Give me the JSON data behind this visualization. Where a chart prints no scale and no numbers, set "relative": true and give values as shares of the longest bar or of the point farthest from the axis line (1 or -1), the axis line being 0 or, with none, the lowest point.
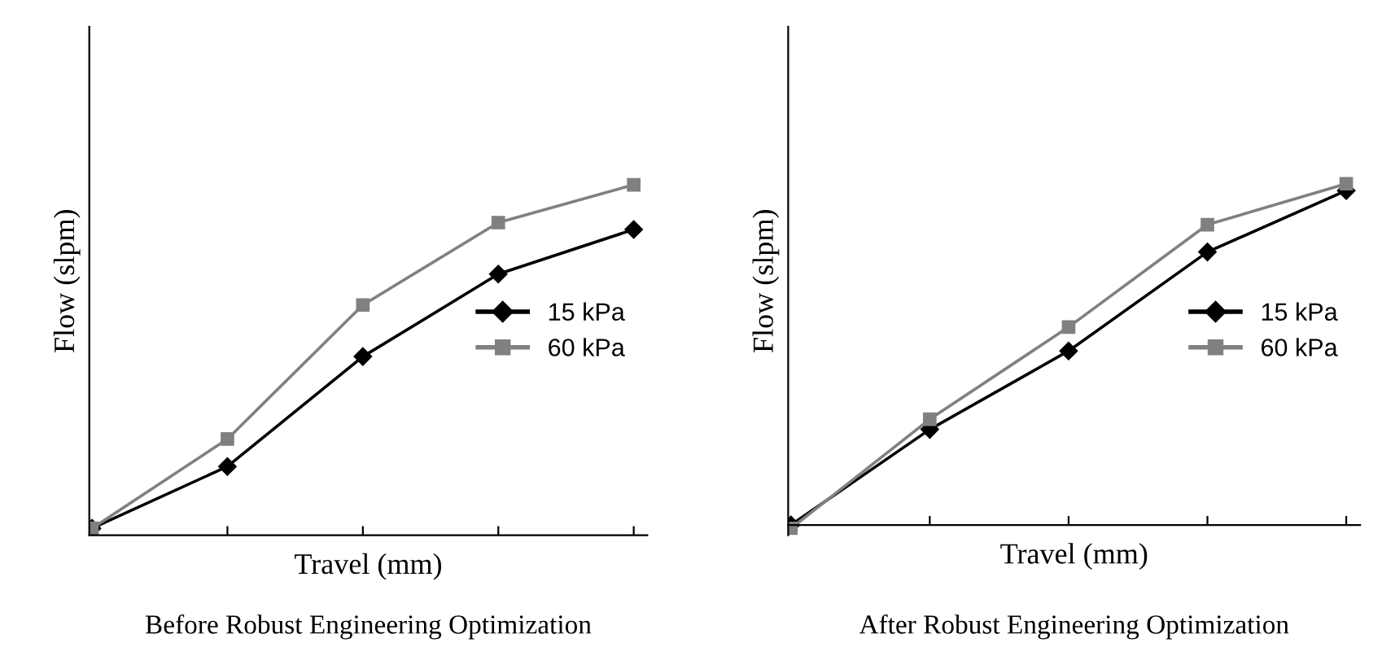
{
  "chart_data": [
    {
      "type": "line",
      "title": "Before Robust Engineering Optimization",
      "xlabel": "Travel (mm)",
      "ylabel": "Flow (slpm)",
      "relative": true,
      "legend": "center right",
      "grid": false,
      "tick_labels": false,
      "categories": [
        null,
        null,
        null,
        null,
        null
      ],
      "series": [
        {
          "name": "15 kPa",
          "color": "#000000",
          "marker": "diamond",
          "values": [
            0,
            0.18,
            0.5,
            0.74,
            0.87
          ]
        },
        {
          "name": "60 kPa",
          "color": "#808080",
          "marker": "square",
          "values": [
            0,
            0.26,
            0.65,
            0.89,
            1
          ]
        }
      ]
    },
    {
      "type": "line",
      "title": "After Robust Engineering Optimization",
      "xlabel": "Travel (mm)",
      "ylabel": "Flow (slpm)",
      "relative": true,
      "legend": "center right",
      "grid": false,
      "tick_labels": false,
      "categories": [
        null,
        null,
        null,
        null,
        null
      ],
      "series": [
        {
          "name": "15 kPa",
          "color": "#000000",
          "marker": "diamond",
          "values": [
            0,
            0.28,
            0.51,
            0.8,
            0.98
          ]
        },
        {
          "name": "60 kPa",
          "color": "#808080",
          "marker": "square",
          "values": [
            -0.01,
            0.31,
            0.58,
            0.88,
            1
          ]
        }
      ]
    }
  ]
}
